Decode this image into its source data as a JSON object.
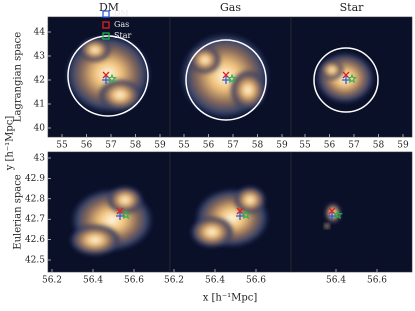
{
  "columns": [
    "DM",
    "Gas",
    "Star"
  ],
  "legend": [
    {
      "label": "DM"
    },
    {
      "label": "Gas"
    },
    {
      "label": "Star"
    }
  ],
  "rows": [
    {
      "label": "Lagrangian space",
      "yticks": [
        40,
        41,
        42,
        43,
        44
      ],
      "xticks": [
        [
          55,
          56,
          57,
          58,
          59
        ],
        [
          55,
          56,
          57,
          58,
          59
        ],
        [
          55,
          56,
          57,
          58,
          59
        ]
      ]
    },
    {
      "label": "Eulerian space",
      "yticks": [
        42.5,
        42.6,
        42.7,
        42.8,
        42.9,
        43
      ],
      "xticks": [
        [
          56.2,
          56.4,
          56.6
        ],
        [
          56.2,
          56.4,
          56.6
        ],
        [
          56.4,
          56.6
        ]
      ]
    }
  ],
  "xlabel": "x [h⁻¹Mpc]",
  "ylabel": "y [h⁻¹Mpc]"
}
